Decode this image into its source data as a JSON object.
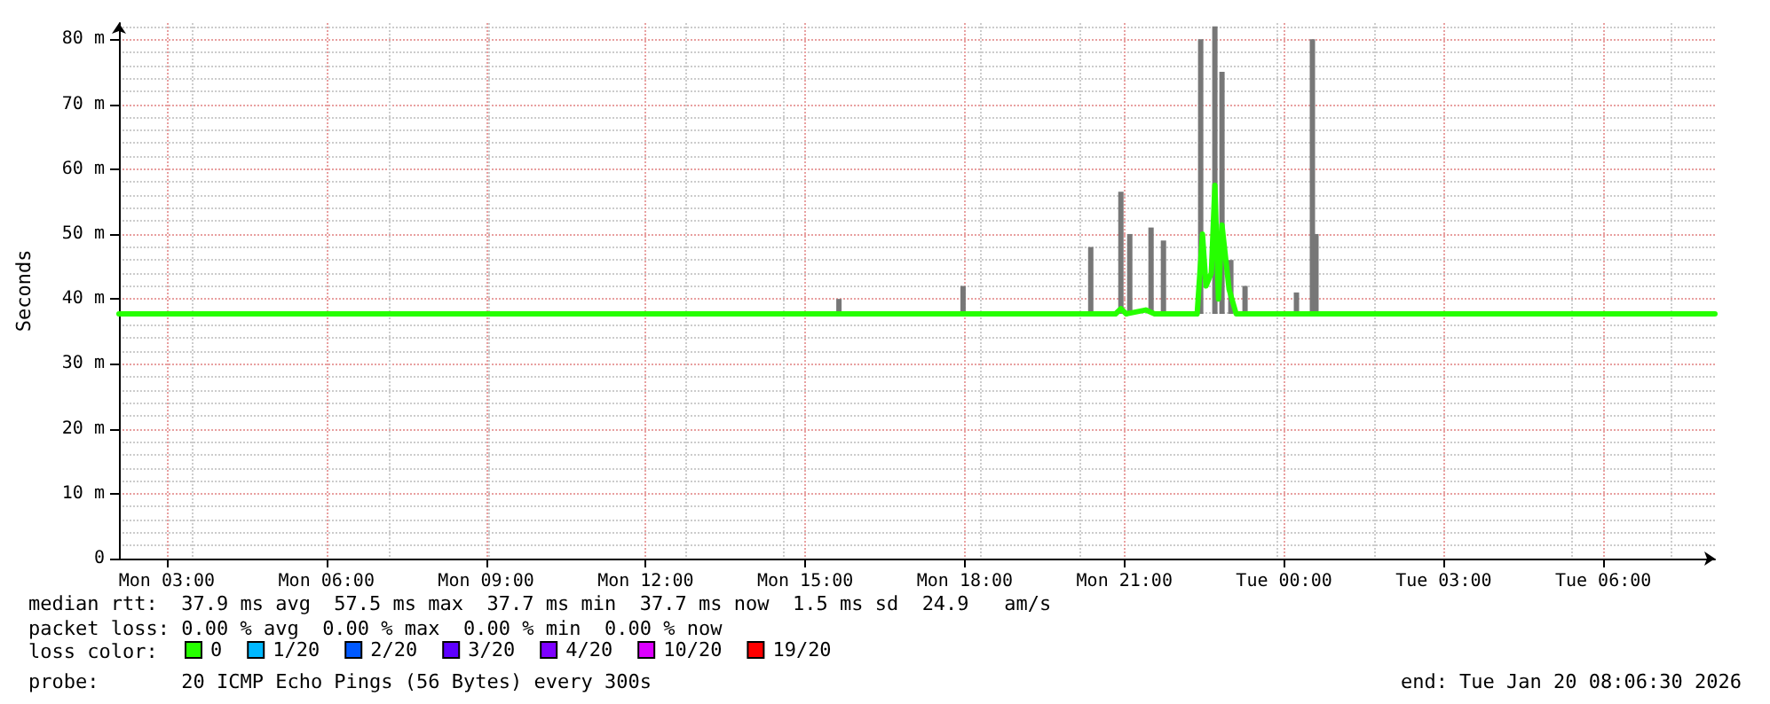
{
  "chart_data": {
    "type": "line",
    "ylabel": "Seconds",
    "xlim": [
      "2026-01-19T02:06",
      "2026-01-20T08:06"
    ],
    "ylim": [
      0,
      82.5
    ],
    "xticks": [
      {
        "value": "2026-01-19T03:00",
        "label": "Mon 03:00"
      },
      {
        "value": "2026-01-19T06:00",
        "label": "Mon 06:00"
      },
      {
        "value": "2026-01-19T09:00",
        "label": "Mon 09:00"
      },
      {
        "value": "2026-01-19T12:00",
        "label": "Mon 12:00"
      },
      {
        "value": "2026-01-19T15:00",
        "label": "Mon 15:00"
      },
      {
        "value": "2026-01-19T18:00",
        "label": "Mon 18:00"
      },
      {
        "value": "2026-01-19T21:00",
        "label": "Mon 21:00"
      },
      {
        "value": "2026-01-20T00:00",
        "label": "Tue 00:00"
      },
      {
        "value": "2026-01-20T03:00",
        "label": "Tue 03:00"
      },
      {
        "value": "2026-01-20T06:00",
        "label": "Tue 06:00"
      }
    ],
    "yticks": [
      0,
      {
        "value": 10,
        "label": "10 m"
      },
      {
        "value": 20,
        "label": "20 m"
      },
      {
        "value": 30,
        "label": "30 m"
      },
      {
        "value": 40,
        "label": "40 m"
      },
      {
        "value": 50,
        "label": "50 m"
      },
      {
        "value": 60,
        "label": "60 m"
      },
      {
        "value": 70,
        "label": "70 m"
      },
      {
        "value": 80,
        "label": "80 m"
      }
    ],
    "grid": true,
    "legend": "bottom left",
    "legend_title": "loss color:",
    "marker": "none",
    "series": [
      {
        "type": "bar",
        "color": "#777777",
        "x": [
          "2026-01-19T15:38",
          "2026-01-19T17:58",
          "2026-01-19T20:22",
          "2026-01-19T20:56",
          "2026-01-19T21:06",
          "2026-01-19T21:30",
          "2026-01-19T21:44",
          "2026-01-19T22:26",
          "2026-01-19T22:42",
          "2026-01-19T22:50",
          "2026-01-19T23:00",
          "2026-01-19T23:16",
          "2026-01-20T00:14",
          "2026-01-20T00:32",
          "2026-01-20T00:36"
        ],
        "base": [
          37.7,
          37.7,
          37.7,
          37.7,
          37.7,
          37.7,
          37.7,
          37.7,
          37.7,
          37.7,
          37.7,
          37.7,
          37.7,
          37.7,
          37.7
        ],
        "values": [
          2.3,
          4.3,
          10.3,
          18.8,
          12.3,
          13.3,
          11.3,
          42.3,
          44.3,
          37.3,
          8.3,
          4.3,
          3.3,
          42.3,
          12.3
        ]
      },
      {
        "name": "0",
        "color": "#26ff00",
        "x": [
          "2026-01-19T02:06",
          "2026-01-19T20:50",
          "2026-01-19T20:56",
          "2026-01-19T21:02",
          "2026-01-19T21:24",
          "2026-01-19T21:34",
          "2026-01-19T22:22",
          "2026-01-19T22:28",
          "2026-01-19T22:32",
          "2026-01-19T22:38",
          "2026-01-19T22:42",
          "2026-01-19T22:46",
          "2026-01-19T22:50",
          "2026-01-19T22:58",
          "2026-01-19T23:06",
          "2026-01-20T08:06"
        ],
        "values": [
          37.7,
          37.7,
          38.5,
          37.7,
          38.3,
          37.7,
          37.7,
          50,
          42,
          44,
          57.5,
          40,
          51.4,
          41.5,
          37.7,
          37.7
        ]
      },
      {
        "name": "1/20",
        "color": "#00b8ff"
      },
      {
        "name": "2/20",
        "color": "#0059ff"
      },
      {
        "name": "3/20",
        "color": "#5e00ff"
      },
      {
        "name": "4/20",
        "color": "#7e00ff"
      },
      {
        "name": "10/20",
        "color": "#dd00ff"
      },
      {
        "name": "19/20",
        "color": "#ff0000"
      }
    ],
    "annotations": [
      "median rtt:  37.9 ms avg  57.5 ms max  37.7 ms min  37.7 ms now  1.5 ms sd  24.9   am/s",
      "packet loss: 0.00 % avg  0.00 % max  0.00 % min  0.00 % now",
      "probe:       20 ICMP Echo Pings (56 Bytes) every 300s",
      "end: Tue Jan 20 08:06:30 2026"
    ]
  }
}
